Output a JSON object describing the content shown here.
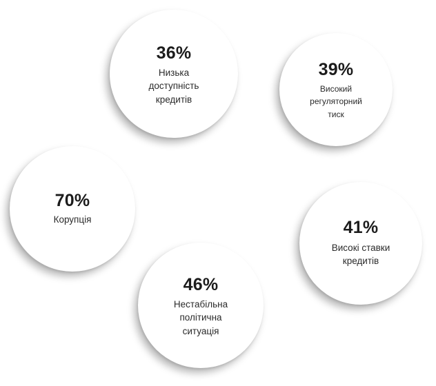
{
  "bubbles": [
    {
      "percent": "36%",
      "label": "Низька\nдоступність\nкредитів"
    },
    {
      "percent": "39%",
      "label": "Високий\nрегуляторний\nтиск"
    },
    {
      "percent": "70%",
      "label": "Корупція"
    },
    {
      "percent": "41%",
      "label": "Високі ставки\nкредитів"
    },
    {
      "percent": "46%",
      "label": "Нестабільна\nполітична\nситуація"
    }
  ]
}
